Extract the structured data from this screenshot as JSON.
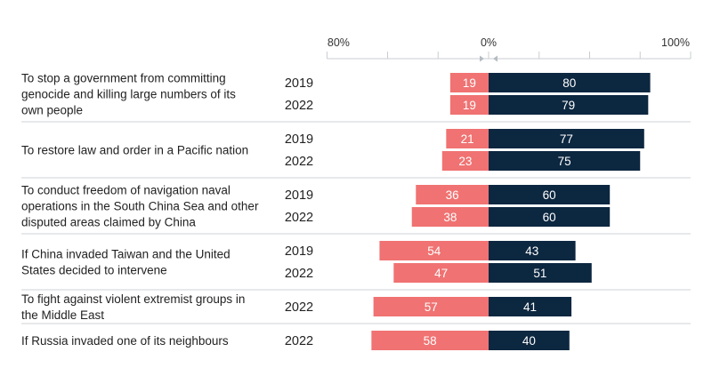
{
  "chart_data": {
    "type": "bar",
    "orientation": "diverging-horizontal",
    "axis": {
      "left_tick": "80%",
      "center_tick": "0%",
      "right_tick": "100%"
    },
    "colors": {
      "negative": "#f07272",
      "positive": "#0c2740",
      "axis": "#c8cdd2",
      "divider": "#cfd3d7"
    },
    "groups": [
      {
        "label": [
          "To stop a government from committing",
          "genocide and killing large numbers of its",
          "own people"
        ],
        "rows": [
          {
            "year": "2019",
            "left": 19,
            "right": 80
          },
          {
            "year": "2022",
            "left": 19,
            "right": 79
          }
        ]
      },
      {
        "label": [
          "To restore law and order in a Pacific nation"
        ],
        "rows": [
          {
            "year": "2019",
            "left": 21,
            "right": 77
          },
          {
            "year": "2022",
            "left": 23,
            "right": 75
          }
        ]
      },
      {
        "label": [
          "To conduct freedom of navigation naval",
          "operations in the South China Sea and other",
          "disputed areas claimed by China"
        ],
        "rows": [
          {
            "year": "2019",
            "left": 36,
            "right": 60
          },
          {
            "year": "2022",
            "left": 38,
            "right": 60
          }
        ]
      },
      {
        "label": [
          "If China invaded Taiwan and the United",
          "States decided to intervene"
        ],
        "rows": [
          {
            "year": "2019",
            "left": 54,
            "right": 43
          },
          {
            "year": "2022",
            "left": 47,
            "right": 51
          }
        ]
      },
      {
        "label": [
          "To fight against violent extremist groups in",
          "the Middle East"
        ],
        "rows": [
          {
            "year": "2022",
            "left": 57,
            "right": 41
          }
        ]
      },
      {
        "label": [
          "If Russia invaded one of its neighbours"
        ],
        "rows": [
          {
            "year": "2022",
            "left": 58,
            "right": 40
          }
        ]
      }
    ]
  }
}
